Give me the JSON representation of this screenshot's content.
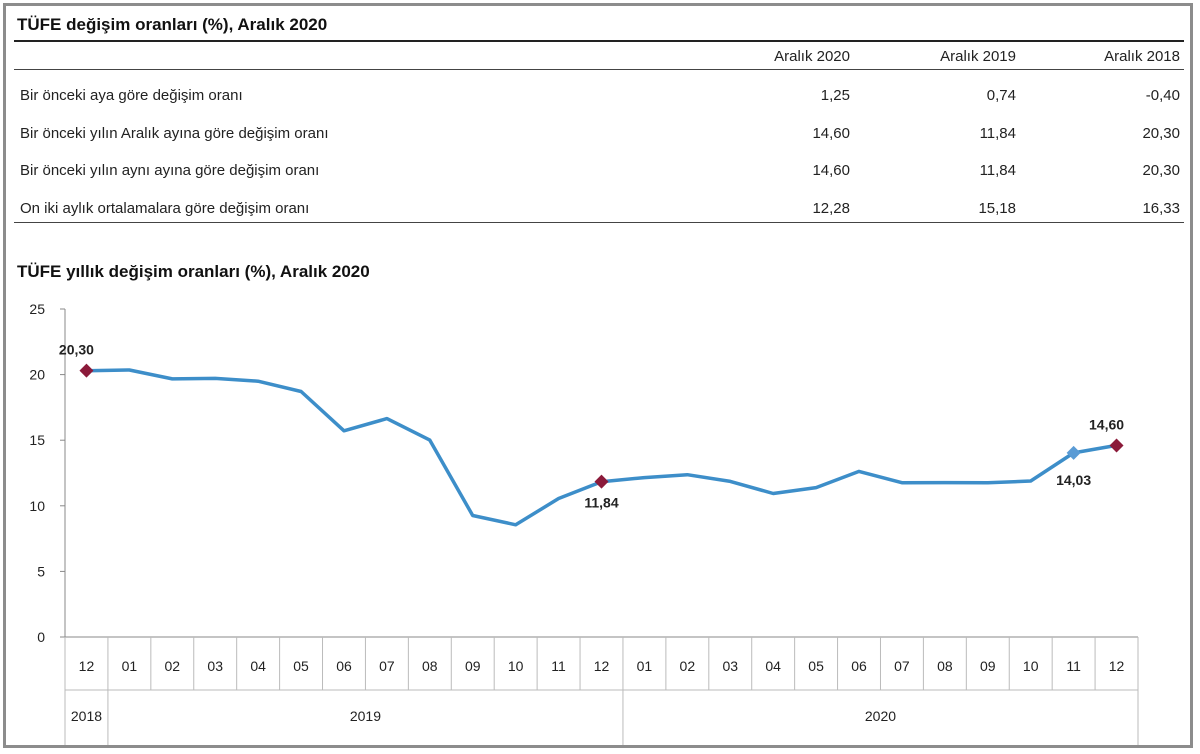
{
  "table": {
    "title": "TÜFE değişim oranları (%), Aralık 2020",
    "columns": [
      "Aralık 2020",
      "Aralık 2019",
      "Aralık 2018"
    ],
    "rows": [
      {
        "label": "Bir önceki aya göre değişim oranı",
        "values": [
          "1,25",
          "0,74",
          "-0,40"
        ]
      },
      {
        "label": "Bir önceki yılın Aralık ayına göre değişim oranı",
        "values": [
          "14,60",
          "11,84",
          "20,30"
        ]
      },
      {
        "label": "Bir önceki yılın aynı ayına göre değişim oranı",
        "values": [
          "14,60",
          "11,84",
          "20,30"
        ]
      },
      {
        "label": "On iki aylık ortalamalara göre değişim oranı",
        "values": [
          "12,28",
          "15,18",
          "16,33"
        ]
      }
    ]
  },
  "chart_data": {
    "type": "line",
    "title": "TÜFE yıllık değişim oranları (%), Aralık 2020",
    "ylim": [
      0,
      25
    ],
    "yticks": [
      0,
      5,
      10,
      15,
      20,
      25
    ],
    "x": [
      "12",
      "01",
      "02",
      "03",
      "04",
      "05",
      "06",
      "07",
      "08",
      "09",
      "10",
      "11",
      "12",
      "01",
      "02",
      "03",
      "04",
      "05",
      "06",
      "07",
      "08",
      "09",
      "10",
      "11",
      "12"
    ],
    "year_groups": [
      {
        "label": "2018",
        "start": 0,
        "end": 0
      },
      {
        "label": "2019",
        "start": 1,
        "end": 12
      },
      {
        "label": "2020",
        "start": 13,
        "end": 24
      }
    ],
    "series": [
      {
        "values": [
          20.3,
          20.35,
          19.67,
          19.71,
          19.5,
          18.71,
          15.72,
          16.65,
          15.01,
          9.26,
          8.55,
          10.56,
          11.84,
          12.15,
          12.37,
          11.86,
          10.94,
          11.39,
          12.62,
          11.76,
          11.77,
          11.75,
          11.89,
          14.03,
          14.6
        ],
        "color": "#3d8ec9"
      }
    ],
    "highlighted_points": [
      {
        "index": 0,
        "label": "20,30",
        "color": "#8b1a3a"
      },
      {
        "index": 12,
        "label": "11,84",
        "color": "#8b1a3a"
      },
      {
        "index": 23,
        "label": "14,03",
        "color": "#5a9bd5"
      },
      {
        "index": 24,
        "label": "14,60",
        "color": "#8b1a3a"
      }
    ],
    "grid": false
  }
}
